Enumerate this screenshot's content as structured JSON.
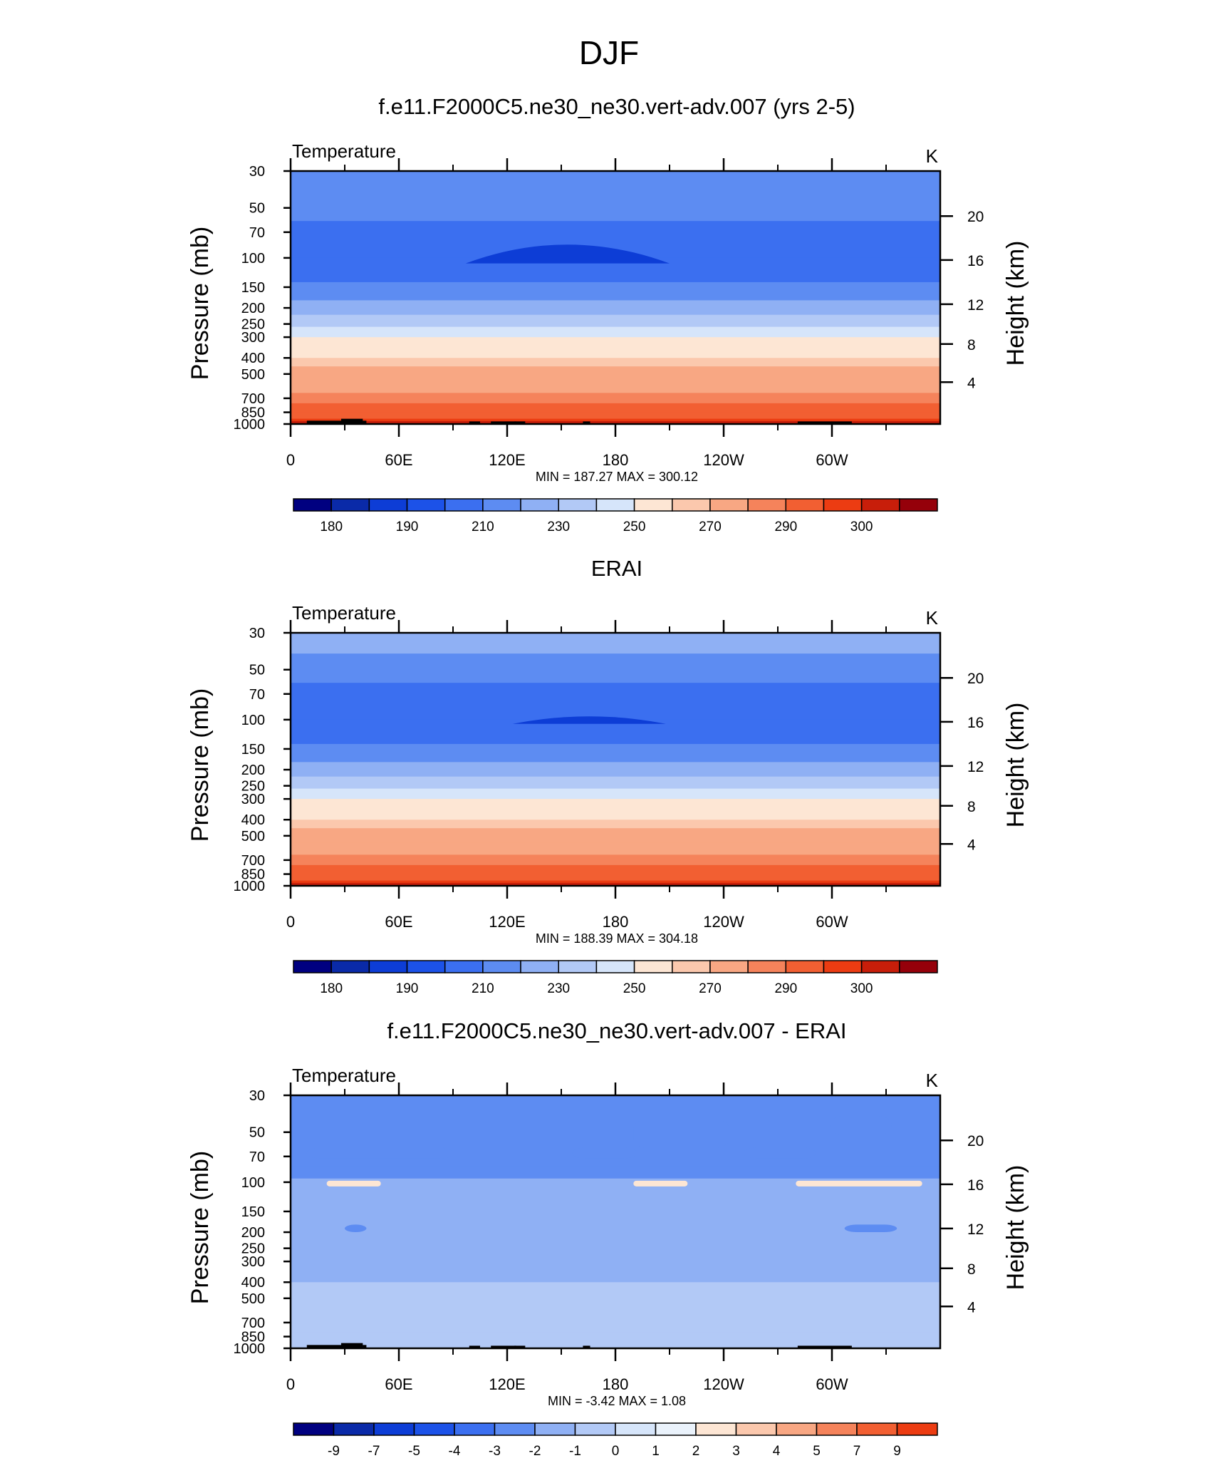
{
  "figure": {
    "title": "DJF"
  },
  "colors": {
    "blue_scale": [
      "#000080",
      "#0a2aa8",
      "#0d3dd6",
      "#1c52e8",
      "#3b6ff0",
      "#5d8cf2",
      "#8fb0f4",
      "#b2c9f6",
      "#d6e5fa"
    ],
    "neutral": "#eaf2fb",
    "warm_scale": [
      "#fde6d4",
      "#fbc8ad",
      "#f8a783",
      "#f5835b",
      "#f25f32",
      "#ec3c12",
      "#c81e0a",
      "#95000a"
    ]
  },
  "chart_data": [
    {
      "type": "heatmap",
      "title": "f.e11.F2000C5.ne30_ne30.vert-adv.007 (yrs 2-5)",
      "left_label": "Temperature",
      "right_label": "K",
      "ylabel": "Pressure (mb)",
      "y2label": "Height (km)",
      "x_ticks": [
        "0",
        "60E",
        "120E",
        "180",
        "120W",
        "60W"
      ],
      "y_ticks": [
        "30",
        "50",
        "70",
        "100",
        "150",
        "200",
        "250",
        "300",
        "400",
        "500",
        "700",
        "850",
        "1000"
      ],
      "y2_ticks": [
        "20",
        "16",
        "12",
        "8",
        "4"
      ],
      "minmax": "MIN = 187.27  MAX = 300.12",
      "colorbar_labels": [
        "180",
        "190",
        "210",
        "230",
        "250",
        "270",
        "290",
        "300"
      ],
      "bands": [
        {
          "p": 30,
          "v": 210
        },
        {
          "p": 40,
          "v": 205
        },
        {
          "p": 60,
          "v": 195
        },
        {
          "p": 100,
          "v": 192
        },
        {
          "p": 140,
          "v": 205
        },
        {
          "p": 180,
          "v": 220
        },
        {
          "p": 220,
          "v": 225
        },
        {
          "p": 260,
          "v": 235
        },
        {
          "p": 300,
          "v": 245
        },
        {
          "p": 350,
          "v": 250
        },
        {
          "p": 400,
          "v": 255
        },
        {
          "p": 450,
          "v": 265
        },
        {
          "p": 550,
          "v": 270
        },
        {
          "p": 650,
          "v": 280
        },
        {
          "p": 750,
          "v": 285
        },
        {
          "p": 850,
          "v": 290
        },
        {
          "p": 930,
          "v": 295
        },
        {
          "p": 1000,
          "v": 300
        }
      ],
      "cold_core": {
        "lon_start": 97,
        "lon_end": 210,
        "p_top": 82,
        "p_bottom": 108
      }
    },
    {
      "type": "heatmap",
      "title": "ERAI",
      "left_label": "Temperature",
      "right_label": "K",
      "ylabel": "Pressure (mb)",
      "y2label": "Height (km)",
      "x_ticks": [
        "0",
        "60E",
        "120E",
        "180",
        "120W",
        "60W"
      ],
      "y_ticks": [
        "30",
        "50",
        "70",
        "100",
        "150",
        "200",
        "250",
        "300",
        "400",
        "500",
        "700",
        "850",
        "1000"
      ],
      "y2_ticks": [
        "20",
        "16",
        "12",
        "8",
        "4"
      ],
      "minmax": "MIN = 188.39  MAX = 304.18",
      "colorbar_labels": [
        "180",
        "190",
        "210",
        "230",
        "250",
        "270",
        "290",
        "300"
      ],
      "bands": [
        {
          "p": 30,
          "v": 215
        },
        {
          "p": 40,
          "v": 205
        },
        {
          "p": 60,
          "v": 195
        },
        {
          "p": 100,
          "v": 192
        },
        {
          "p": 140,
          "v": 205
        },
        {
          "p": 180,
          "v": 220
        },
        {
          "p": 220,
          "v": 225
        },
        {
          "p": 260,
          "v": 235
        },
        {
          "p": 300,
          "v": 245
        },
        {
          "p": 350,
          "v": 250
        },
        {
          "p": 400,
          "v": 255
        },
        {
          "p": 450,
          "v": 265
        },
        {
          "p": 550,
          "v": 270
        },
        {
          "p": 650,
          "v": 280
        },
        {
          "p": 750,
          "v": 285
        },
        {
          "p": 850,
          "v": 290
        },
        {
          "p": 930,
          "v": 295
        },
        {
          "p": 1000,
          "v": 300
        }
      ],
      "cold_core": {
        "lon_start": 123,
        "lon_end": 208,
        "p_top": 95,
        "p_bottom": 106
      }
    },
    {
      "type": "heatmap",
      "title": "f.e11.F2000C5.ne30_ne30.vert-adv.007 - ERAI",
      "left_label": "Temperature",
      "right_label": "K",
      "ylabel": "Pressure (mb)",
      "y2label": "Height (km)",
      "x_ticks": [
        "0",
        "60E",
        "120E",
        "180",
        "120W",
        "60W"
      ],
      "y_ticks": [
        "30",
        "50",
        "70",
        "100",
        "150",
        "200",
        "250",
        "300",
        "400",
        "500",
        "700",
        "850",
        "1000"
      ],
      "y2_ticks": [
        "20",
        "16",
        "12",
        "8",
        "4"
      ],
      "minmax": "MIN =  -3.42  MAX =   1.08",
      "colorbar_labels": [
        "-9",
        "-7",
        "-5",
        "-4",
        "-3",
        "-2",
        "-1",
        "0",
        "1",
        "2",
        "3",
        "4",
        "5",
        "7",
        "9"
      ],
      "bands": [
        {
          "p": 30,
          "v": -2.5
        },
        {
          "p": 80,
          "v": -2.5
        },
        {
          "p": 95,
          "v": -1.5
        },
        {
          "p": 130,
          "v": -1.5
        },
        {
          "p": 280,
          "v": -1.5
        },
        {
          "p": 400,
          "v": -0.5
        },
        {
          "p": 600,
          "v": -1.2
        },
        {
          "p": 800,
          "v": -0.5
        },
        {
          "p": 1000,
          "v": -0.5
        }
      ]
    }
  ]
}
